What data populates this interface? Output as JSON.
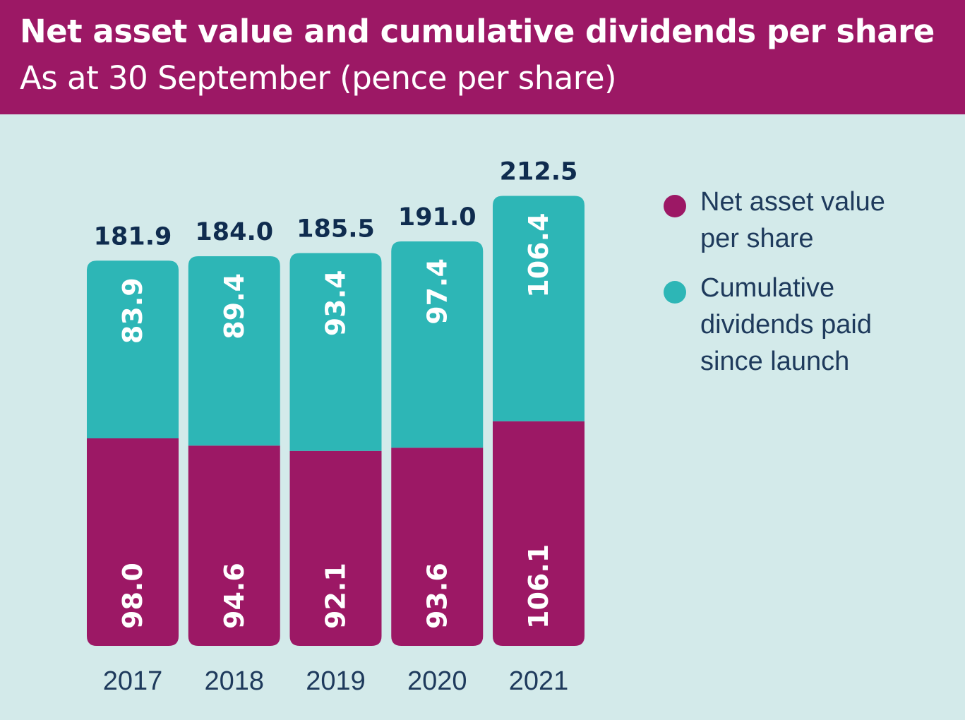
{
  "header": {
    "title": "Net asset value and cumulative dividends per share",
    "subtitle": "As at 30 September (pence per share)"
  },
  "colors": {
    "header_bg": "#9c1865",
    "background": "#d3eaea",
    "nav": "#9c1865",
    "dividends": "#2db6b6",
    "text_dark": "#0f2c4f",
    "axis_text": "#1e3a5c"
  },
  "legend": {
    "placement": "right",
    "items": [
      {
        "label_lines": [
          "Net asset value",
          "per share"
        ],
        "color": "#9c1865"
      },
      {
        "label_lines": [
          "Cumulative",
          "dividends paid",
          "since launch"
        ],
        "color": "#2db6b6"
      }
    ]
  },
  "chart_data": {
    "type": "bar",
    "stacked": true,
    "title": "Net asset value and cumulative dividends per share",
    "subtitle": "As at 30 September (pence per share)",
    "categories": [
      "2017",
      "2018",
      "2019",
      "2020",
      "2021"
    ],
    "series": [
      {
        "name": "Net asset value per share",
        "values": [
          98.0,
          94.6,
          92.1,
          93.6,
          106.1
        ],
        "labels": [
          "98.0",
          "94.6",
          "92.1",
          "93.6",
          "106.1"
        ],
        "color": "#9c1865"
      },
      {
        "name": "Cumulative dividends paid since launch",
        "values": [
          83.9,
          89.4,
          93.4,
          97.4,
          106.4
        ],
        "labels": [
          "83.9",
          "89.4",
          "93.4",
          "97.4",
          "106.4"
        ],
        "color": "#2db6b6"
      }
    ],
    "totals": [
      "181.9",
      "184.0",
      "185.5",
      "191.0",
      "212.5"
    ],
    "ylim": [
      0,
      212.5
    ],
    "grid": false,
    "legend_position": "right"
  }
}
